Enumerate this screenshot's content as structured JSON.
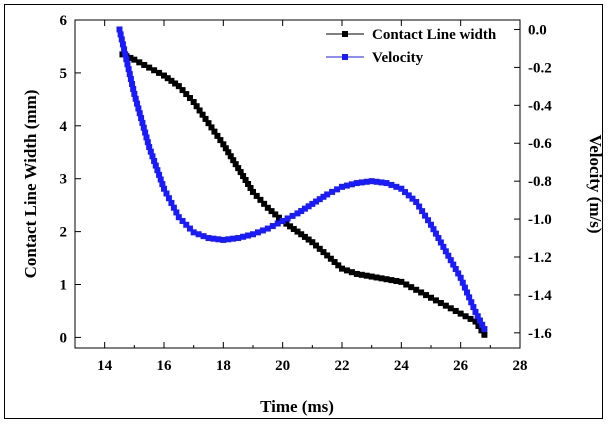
{
  "chart_data": {
    "type": "line",
    "xlabel": "Time (ms)",
    "ylabel": "Contact Line Width (mm)",
    "y2label": "Velocity (m/s)",
    "xlim": [
      13,
      28
    ],
    "ylim": [
      -0.2,
      6
    ],
    "y2lim": [
      -1.68,
      0.05
    ],
    "xticks": [
      14,
      16,
      18,
      20,
      22,
      24,
      26,
      28
    ],
    "yticks": [
      0,
      1,
      2,
      3,
      4,
      5,
      6
    ],
    "y2ticks": [
      0.0,
      -0.2,
      -0.4,
      -0.6,
      -0.8,
      -1.0,
      -1.2,
      -1.4,
      -1.6
    ],
    "xtick_labels": [
      "14",
      "16",
      "18",
      "20",
      "22",
      "24",
      "26",
      "28"
    ],
    "ytick_labels": [
      "0",
      "1",
      "2",
      "3",
      "4",
      "5",
      "6"
    ],
    "y2tick_labels": [
      "0.0",
      "-0.2",
      "-0.4",
      "-0.6",
      "-0.8",
      "-1.0",
      "-1.2",
      "-1.4",
      "-1.6"
    ],
    "legend_position": "top-right",
    "series": [
      {
        "name": "Contact Line width",
        "axis": "left",
        "color": "#000000",
        "marker": "square",
        "x": [
          14.6,
          15.0,
          15.5,
          16.0,
          16.5,
          17.0,
          17.5,
          18.0,
          18.5,
          19.0,
          19.5,
          20.0,
          20.5,
          21.0,
          21.5,
          22.0,
          22.5,
          23.0,
          23.5,
          24.0,
          24.5,
          25.0,
          25.5,
          26.0,
          26.5,
          26.8
        ],
        "y": [
          5.35,
          5.25,
          5.1,
          4.95,
          4.75,
          4.45,
          4.05,
          3.65,
          3.2,
          2.75,
          2.45,
          2.2,
          2.0,
          1.8,
          1.55,
          1.3,
          1.2,
          1.15,
          1.1,
          1.05,
          0.9,
          0.75,
          0.6,
          0.45,
          0.3,
          0.05
        ]
      },
      {
        "name": "Velocity",
        "axis": "right",
        "color": "#1a1aff",
        "marker": "square",
        "x": [
          14.5,
          15.0,
          15.5,
          16.0,
          16.5,
          17.0,
          17.5,
          18.0,
          18.5,
          19.0,
          19.5,
          20.0,
          20.5,
          21.0,
          21.5,
          22.0,
          22.5,
          23.0,
          23.5,
          24.0,
          24.5,
          25.0,
          25.5,
          26.0,
          26.5,
          26.8
        ],
        "y": [
          0.0,
          -0.34,
          -0.62,
          -0.84,
          -0.99,
          -1.07,
          -1.1,
          -1.11,
          -1.1,
          -1.08,
          -1.05,
          -1.01,
          -0.97,
          -0.92,
          -0.87,
          -0.83,
          -0.81,
          -0.8,
          -0.81,
          -0.84,
          -0.91,
          -1.03,
          -1.17,
          -1.31,
          -1.49,
          -1.58
        ]
      }
    ]
  }
}
